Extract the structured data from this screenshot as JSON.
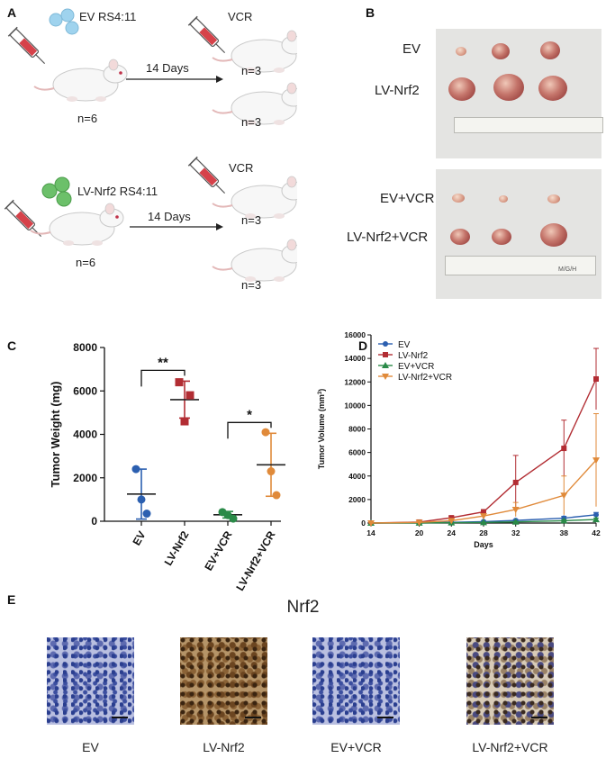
{
  "panels": {
    "a": "A",
    "b": "B",
    "c": "C",
    "d": "D",
    "e": "E"
  },
  "panel_a": {
    "top_cells": "EV RS4:11",
    "bottom_cells": "LV-Nrf2 RS4:11",
    "treatment": "VCR",
    "duration": "14 Days",
    "n_start": "n=6",
    "n_group": "n=3",
    "colors": {
      "ev_cell": "#9fd3ee",
      "lv_cell": "#6cc06a",
      "syringe": "#d6424a"
    }
  },
  "panel_b": {
    "top_labels": [
      "EV",
      "LV-Nrf2"
    ],
    "bottom_labels": [
      "EV+VCR",
      "LV-Nrf2+VCR"
    ],
    "ruler_brand": "M/G/H"
  },
  "chart_data": [
    {
      "type": "scatter",
      "panel": "C",
      "ylabel": "Tumor Weight (mg)",
      "ylim": [
        0,
        8000
      ],
      "yticks": [
        "0",
        "2000",
        "4000",
        "6000",
        "8000"
      ],
      "categories": [
        "EV",
        "LV-Nrf2",
        "EV+VCR",
        "LV-Nrf2+VCR"
      ],
      "colors": [
        "#2b5fb0",
        "#b22d33",
        "#2a8a48",
        "#e08a3a"
      ],
      "points": [
        [
          2400,
          350,
          1000
        ],
        [
          6400,
          5800,
          4600
        ],
        [
          420,
          120,
          280
        ],
        [
          4100,
          1200,
          2300
        ]
      ],
      "means": [
        1250,
        5600,
        300,
        2600
      ],
      "errors": [
        1150,
        850,
        150,
        1450
      ],
      "markers": [
        "circle",
        "square",
        "circle",
        "circle"
      ],
      "significance": [
        {
          "between": [
            0,
            1
          ],
          "label": "**"
        },
        {
          "between": [
            2,
            3
          ],
          "label": "*"
        }
      ]
    },
    {
      "type": "line",
      "panel": "D",
      "xlabel": "Days",
      "ylabel": "Tumor Volume (mm",
      "ylabel_sup": "3",
      "ylabel_close": ")",
      "x": [
        14,
        20,
        24,
        28,
        32,
        38,
        42
      ],
      "xticks": [
        "14",
        "20",
        "24",
        "28",
        "32",
        "38",
        "42"
      ],
      "ylim": [
        0,
        16000
      ],
      "yticks": [
        "0",
        "2000",
        "4000",
        "6000",
        "8000",
        "10000",
        "12000",
        "14000",
        "16000"
      ],
      "legend": "top-left",
      "series": [
        {
          "name": "EV",
          "color": "#2b5fb0",
          "marker": "circle",
          "values": [
            0,
            30,
            60,
            120,
            220,
            420,
            700
          ],
          "err": [
            0,
            15,
            30,
            50,
            80,
            150,
            200
          ]
        },
        {
          "name": "LV-Nrf2",
          "color": "#b22d33",
          "marker": "square",
          "values": [
            0,
            80,
            450,
            950,
            3450,
            6350,
            12250
          ],
          "err": [
            0,
            40,
            120,
            200,
            2300,
            2400,
            2600
          ]
        },
        {
          "name": "EV+VCR",
          "color": "#2a8a48",
          "marker": "triangle-up",
          "values": [
            0,
            10,
            30,
            50,
            100,
            200,
            300
          ],
          "err": [
            0,
            5,
            10,
            20,
            40,
            80,
            120
          ]
        },
        {
          "name": "LV-Nrf2+VCR",
          "color": "#e08a3a",
          "marker": "triangle-down",
          "values": [
            0,
            50,
            200,
            600,
            1150,
            2350,
            5350
          ],
          "err": [
            0,
            20,
            80,
            150,
            600,
            1650,
            3950
          ]
        }
      ]
    }
  ],
  "panel_e": {
    "title": "Nrf2",
    "labels": [
      "EV",
      "LV-Nrf2",
      "EV+VCR",
      "LV-Nrf2+VCR"
    ]
  }
}
